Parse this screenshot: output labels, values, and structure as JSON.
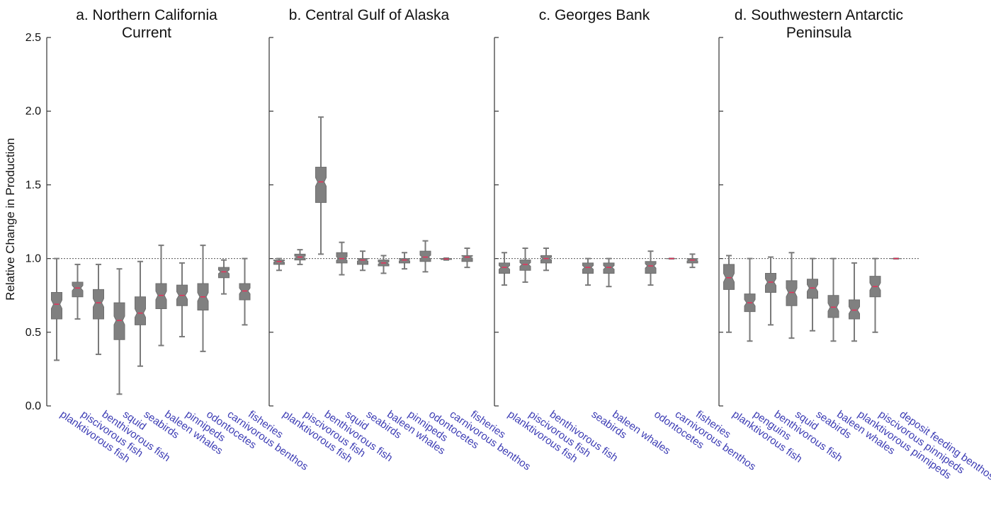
{
  "chart_data": {
    "type": "boxplot",
    "ylabel": "Relative Change in Production",
    "ylim": [
      0,
      2.5
    ],
    "yticks": [
      "0.0",
      "0.5",
      "1.0",
      "1.5",
      "2.0",
      "2.5"
    ],
    "reference_line": 1.0,
    "panels": [
      {
        "title_lines": [
          "a. Northern California",
          "Current"
        ],
        "categories": [
          "planktivorous fish",
          "piscivorous fish",
          "benthivorous fish",
          "squid",
          "seabirds",
          "baleen whales",
          "pinnipeds",
          "odontocetes",
          "carnivorous benthos",
          "fisheries"
        ],
        "boxes": [
          {
            "min": 0.31,
            "q1": 0.59,
            "median": 0.69,
            "q3": 0.77,
            "max": 1.0
          },
          {
            "min": 0.59,
            "q1": 0.74,
            "median": 0.8,
            "q3": 0.84,
            "max": 0.96
          },
          {
            "min": 0.35,
            "q1": 0.59,
            "median": 0.7,
            "q3": 0.79,
            "max": 0.96
          },
          {
            "min": 0.08,
            "q1": 0.45,
            "median": 0.58,
            "q3": 0.7,
            "max": 0.93
          },
          {
            "min": 0.27,
            "q1": 0.55,
            "median": 0.63,
            "q3": 0.74,
            "max": 0.98
          },
          {
            "min": 0.41,
            "q1": 0.66,
            "median": 0.75,
            "q3": 0.83,
            "max": 1.09
          },
          {
            "min": 0.47,
            "q1": 0.68,
            "median": 0.75,
            "q3": 0.82,
            "max": 0.97
          },
          {
            "min": 0.37,
            "q1": 0.65,
            "median": 0.74,
            "q3": 0.83,
            "max": 1.09
          },
          {
            "min": 0.76,
            "q1": 0.87,
            "median": 0.91,
            "q3": 0.94,
            "max": 0.99
          },
          {
            "min": 0.55,
            "q1": 0.72,
            "median": 0.78,
            "q3": 0.83,
            "max": 1.0
          }
        ]
      },
      {
        "title_lines": [
          "b. Central Gulf of Alaska"
        ],
        "categories": [
          "planktivorous fish",
          "piscivorous fish",
          "benthivorous fish",
          "squid",
          "seabirds",
          "baleen whales",
          "pinnipeds",
          "odontocetes",
          "carnivorous benthos",
          "fisheries"
        ],
        "boxes": [
          {
            "min": 0.92,
            "q1": 0.96,
            "median": 0.98,
            "q3": 0.99,
            "max": 1.0
          },
          {
            "min": 0.96,
            "q1": 0.99,
            "median": 1.01,
            "q3": 1.03,
            "max": 1.06
          },
          {
            "min": 1.03,
            "q1": 1.38,
            "median": 1.52,
            "q3": 1.62,
            "max": 1.96
          },
          {
            "min": 0.89,
            "q1": 0.97,
            "median": 1.0,
            "q3": 1.04,
            "max": 1.11
          },
          {
            "min": 0.92,
            "q1": 0.96,
            "median": 0.99,
            "q3": 1.0,
            "max": 1.05
          },
          {
            "min": 0.9,
            "q1": 0.95,
            "median": 0.97,
            "q3": 0.99,
            "max": 1.02
          },
          {
            "min": 0.93,
            "q1": 0.97,
            "median": 0.99,
            "q3": 1.0,
            "max": 1.04
          },
          {
            "min": 0.91,
            "q1": 0.98,
            "median": 1.01,
            "q3": 1.05,
            "max": 1.12
          },
          {
            "min": 0.99,
            "q1": 0.994,
            "median": 0.997,
            "q3": 1.0,
            "max": 1.003
          },
          {
            "min": 0.94,
            "q1": 0.98,
            "median": 1.01,
            "q3": 1.02,
            "max": 1.07
          }
        ]
      },
      {
        "title_lines": [
          "c. Georges Bank"
        ],
        "categories": [
          "planktivorous fish",
          "piscivorous fish",
          "benthivorous fish",
          "seabirds",
          "baleen whales",
          "odontocetes",
          "carnivorous benthos",
          "fisheries"
        ],
        "positions": [
          0,
          1,
          2,
          4,
          5,
          7,
          8,
          9
        ],
        "boxes": [
          {
            "min": 0.82,
            "q1": 0.9,
            "median": 0.94,
            "q3": 0.97,
            "max": 1.04
          },
          {
            "min": 0.84,
            "q1": 0.92,
            "median": 0.96,
            "q3": 0.99,
            "max": 1.07
          },
          {
            "min": 0.92,
            "q1": 0.97,
            "median": 1.0,
            "q3": 1.02,
            "max": 1.07
          },
          {
            "min": 0.82,
            "q1": 0.9,
            "median": 0.94,
            "q3": 0.97,
            "max": 1.0
          },
          {
            "min": 0.81,
            "q1": 0.9,
            "median": 0.94,
            "q3": 0.97,
            "max": 1.0
          },
          {
            "min": 0.82,
            "q1": 0.9,
            "median": 0.95,
            "q3": 0.98,
            "max": 1.05
          },
          {
            "min": 0.998,
            "q1": 0.999,
            "median": 1.0,
            "q3": 1.0,
            "max": 1.001
          },
          {
            "min": 0.94,
            "q1": 0.97,
            "median": 0.99,
            "q3": 1.0,
            "max": 1.03
          }
        ]
      },
      {
        "title_lines": [
          "d. Southwestern Antarctic",
          "Peninsula"
        ],
        "categories": [
          "planktivorous fish",
          "penguins",
          "benthivorous fish",
          "squid",
          "seabirds",
          "baleen whales",
          "planktivorous pinnipeds",
          "piscivorous pinnipeds",
          "deposit feeding benthos"
        ],
        "boxes": [
          {
            "min": 0.5,
            "q1": 0.79,
            "median": 0.87,
            "q3": 0.96,
            "max": 1.02
          },
          {
            "min": 0.44,
            "q1": 0.64,
            "median": 0.7,
            "q3": 0.76,
            "max": 1.0
          },
          {
            "min": 0.55,
            "q1": 0.77,
            "median": 0.84,
            "q3": 0.9,
            "max": 1.01
          },
          {
            "min": 0.46,
            "q1": 0.68,
            "median": 0.77,
            "q3": 0.85,
            "max": 1.04
          },
          {
            "min": 0.51,
            "q1": 0.73,
            "median": 0.8,
            "q3": 0.86,
            "max": 1.0
          },
          {
            "min": 0.44,
            "q1": 0.6,
            "median": 0.67,
            "q3": 0.75,
            "max": 1.0
          },
          {
            "min": 0.44,
            "q1": 0.59,
            "median": 0.65,
            "q3": 0.72,
            "max": 0.97
          },
          {
            "min": 0.5,
            "q1": 0.74,
            "median": 0.81,
            "q3": 0.88,
            "max": 1.0
          },
          {
            "min": 0.998,
            "q1": 0.999,
            "median": 1.0,
            "q3": 1.0,
            "max": 1.001
          }
        ]
      }
    ]
  }
}
